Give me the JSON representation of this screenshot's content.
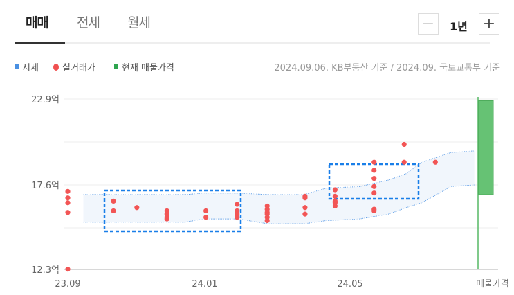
{
  "tabs": [
    {
      "label": "매매",
      "active": true
    },
    {
      "label": "전세",
      "active": false
    },
    {
      "label": "월세",
      "active": false
    }
  ],
  "period": {
    "minus_icon": "minus-icon",
    "value": "1년",
    "plus_icon": "plus-icon"
  },
  "legend": [
    {
      "label": "시세",
      "color": "#4a90e2"
    },
    {
      "label": "실거래가",
      "color": "#f05050"
    },
    {
      "label": "현재 매물가격",
      "color": "#2ea44f"
    }
  ],
  "source": "2024.09.06. KB부동산 기준 / 2024.09. 국토교통부 기준",
  "chart_data": {
    "type": "scatter",
    "yunit": "억",
    "ylim": [
      12.3,
      22.9
    ],
    "y_ticks": [
      "22.9억",
      "17.6억",
      "12.3억"
    ],
    "x_ticks": [
      {
        "label": "23.09",
        "date": "2023-09-01"
      },
      {
        "label": "24.01",
        "date": "2024-01-01"
      },
      {
        "label": "24.05",
        "date": "2024-05-01"
      },
      {
        "label": "매물가격",
        "date": ""
      }
    ],
    "grid": true,
    "transactions": [
      {
        "date": "2023-09-01",
        "prices": [
          17.2,
          16.8,
          16.5,
          15.9,
          12.4
        ]
      },
      {
        "date": "2023-10-12",
        "prices": [
          16.6,
          16.0
        ]
      },
      {
        "date": "2023-11-02",
        "prices": [
          16.2
        ]
      },
      {
        "date": "2023-11-29",
        "prices": [
          16.0,
          15.8,
          15.6,
          15.5
        ]
      },
      {
        "date": "2024-01-03",
        "prices": [
          16.0,
          15.6
        ]
      },
      {
        "date": "2024-01-31",
        "prices": [
          16.4,
          16.0,
          15.8,
          15.6
        ]
      },
      {
        "date": "2024-02-27",
        "prices": [
          16.3,
          16.1,
          15.9,
          15.8,
          15.6,
          15.4
        ]
      },
      {
        "date": "2024-04-01",
        "prices": [
          16.9,
          16.8,
          16.2,
          15.8
        ]
      },
      {
        "date": "2024-04-28",
        "prices": [
          17.3,
          16.9,
          16.6,
          16.5,
          16.3
        ]
      },
      {
        "date": "2024-06-02",
        "prices": [
          19.0,
          18.5,
          18.0,
          17.5,
          17.1,
          16.1,
          16.0
        ]
      },
      {
        "date": "2024-06-29",
        "prices": [
          20.1,
          19.0
        ]
      },
      {
        "date": "2024-07-27",
        "prices": [
          19.0
        ]
      }
    ],
    "market_band": {
      "dates": [
        "2023-09-15",
        "2023-12-15",
        "2024-01-01",
        "2024-02-01",
        "2024-02-28",
        "2024-03-31",
        "2024-04-20",
        "2024-05-20",
        "2024-06-15",
        "2024-07-01",
        "2024-07-15",
        "2024-08-10",
        "2024-08-31"
      ],
      "upper": [
        17.0,
        17.0,
        17.1,
        17.1,
        17.0,
        17.0,
        17.4,
        17.5,
        17.9,
        18.3,
        19.0,
        19.6,
        19.7
      ],
      "lower": [
        15.3,
        15.3,
        15.5,
        15.5,
        15.2,
        15.2,
        15.4,
        15.5,
        15.8,
        16.2,
        16.5,
        17.5,
        17.6
      ]
    },
    "listing_price": {
      "label": "매물가격",
      "low": 17.0,
      "high": 22.8
    }
  }
}
